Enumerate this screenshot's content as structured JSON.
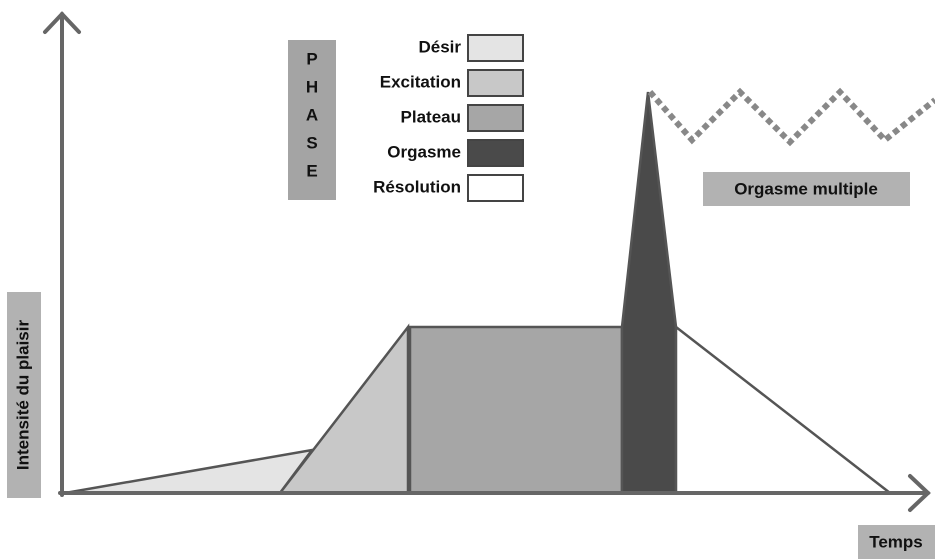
{
  "phase_letters": [
    "P",
    "H",
    "A",
    "S",
    "E"
  ],
  "legend": [
    {
      "label": "Désir"
    },
    {
      "label": "Excitation"
    },
    {
      "label": "Plateau"
    },
    {
      "label": "Orgasme"
    },
    {
      "label": "Résolution"
    }
  ],
  "annotation": "Orgasme multiple",
  "y_axis_label": "Intensité du plaisir",
  "x_axis_label": "Temps"
}
